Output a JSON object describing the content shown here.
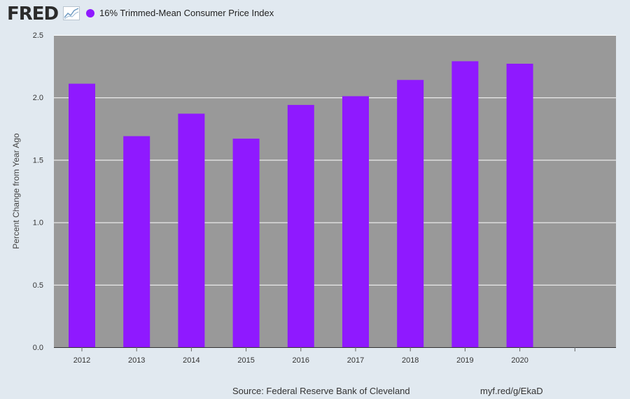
{
  "header": {
    "logo_text": "FRED",
    "logo_icon": "line-graph-icon",
    "legend_label": "16% Trimmed-Mean Consumer Price Index"
  },
  "colors": {
    "series": "#8f19ff",
    "plot_background": "#999999",
    "gridline": "#ffffff",
    "page_background": "#e1e9f0"
  },
  "chart_data": {
    "type": "bar",
    "categories": [
      "2012",
      "2013",
      "2014",
      "2015",
      "2016",
      "2017",
      "2018",
      "2019",
      "2020"
    ],
    "series": [
      {
        "name": "16% Trimmed-Mean Consumer Price Index",
        "values": [
          2.11,
          1.69,
          1.87,
          1.67,
          1.94,
          2.01,
          2.14,
          2.29,
          2.27
        ]
      }
    ],
    "ylabel": "Percent Change from Year Ago",
    "ylim": [
      0,
      2.5
    ],
    "yticks": [
      "0.0",
      "0.5",
      "1.0",
      "1.5",
      "2.0",
      "2.5"
    ],
    "grid": true,
    "legend_position": "top-left"
  },
  "footer": {
    "source": "Source: Federal Reserve Bank of Cleveland",
    "link": "myf.red/g/EkaD"
  }
}
